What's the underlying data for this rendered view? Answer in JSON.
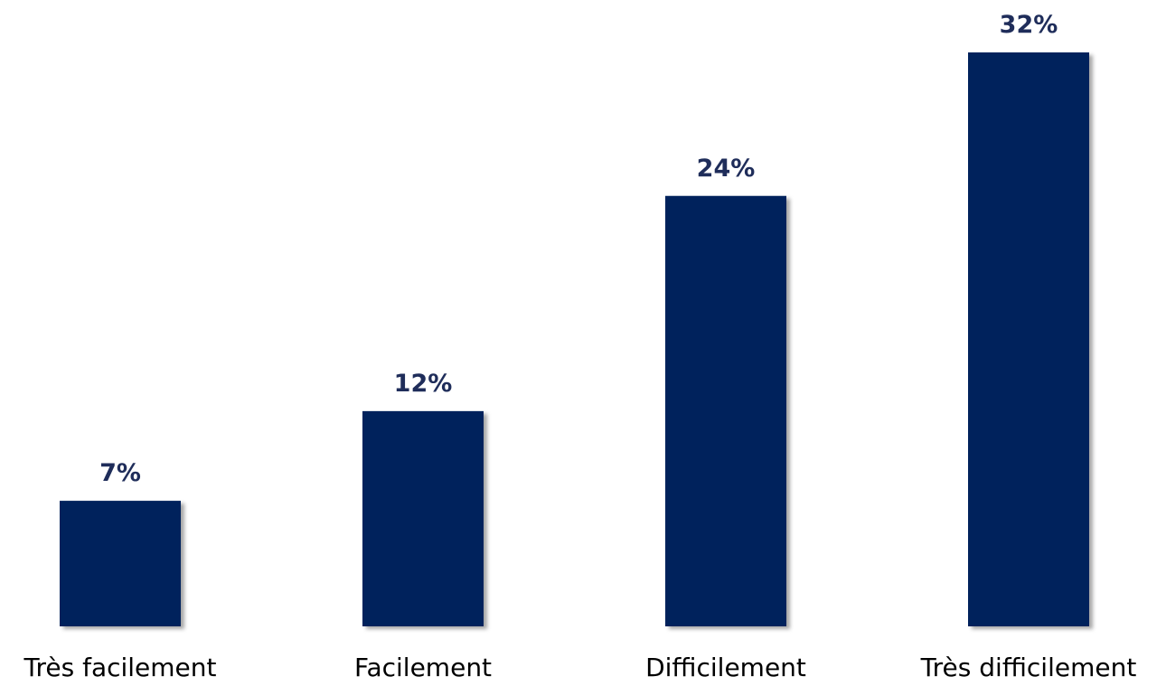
{
  "chart_data": {
    "type": "bar",
    "categories": [
      "Très facilement",
      "Facilement",
      "Difficilement",
      "Très difficilement"
    ],
    "values": [
      7,
      12,
      24,
      32
    ],
    "value_labels": [
      "7%",
      "12%",
      "24%",
      "32%"
    ],
    "unit": "%",
    "ylim": [
      0,
      32
    ],
    "grid": false,
    "legend": "none",
    "colors": {
      "bar": "#00205b",
      "value_label": "#1f2d5a",
      "category_label": "#000000"
    }
  }
}
